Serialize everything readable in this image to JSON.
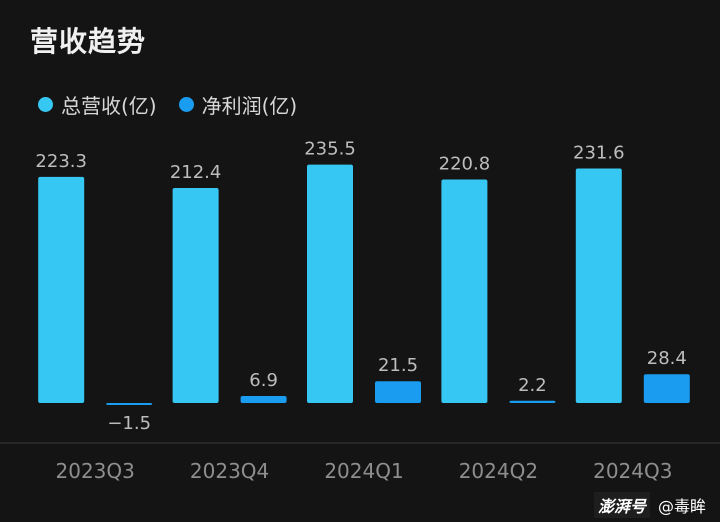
{
  "chart_data": {
    "type": "bar",
    "title": "营收趋势",
    "categories": [
      "2023Q3",
      "2023Q4",
      "2024Q1",
      "2024Q2",
      "2024Q3"
    ],
    "series": [
      {
        "name": "总营收(亿)",
        "color": "#36c7f2",
        "values": [
          223.3,
          212.4,
          235.5,
          220.8,
          231.6
        ],
        "labels": [
          "223.3",
          "212.4",
          "235.5",
          "220.8",
          "231.6"
        ]
      },
      {
        "name": "净利润(亿)",
        "color": "#1a9cf0",
        "values": [
          -1.5,
          6.9,
          21.5,
          2.2,
          28.4
        ],
        "labels": [
          "−1.5",
          "6.9",
          "21.5",
          "2.2",
          "28.4"
        ]
      }
    ],
    "ylim": [
      -10,
      260
    ],
    "grid": false,
    "legend_position": "top-left",
    "xlabel": "",
    "ylabel": ""
  },
  "colors": {
    "background": "#141414",
    "axis": "#3a3a3a",
    "label": "#bdbdbd",
    "tick": "#8e8e8e"
  },
  "watermark": {
    "logo": "澎湃号",
    "author": "@毒眸"
  }
}
